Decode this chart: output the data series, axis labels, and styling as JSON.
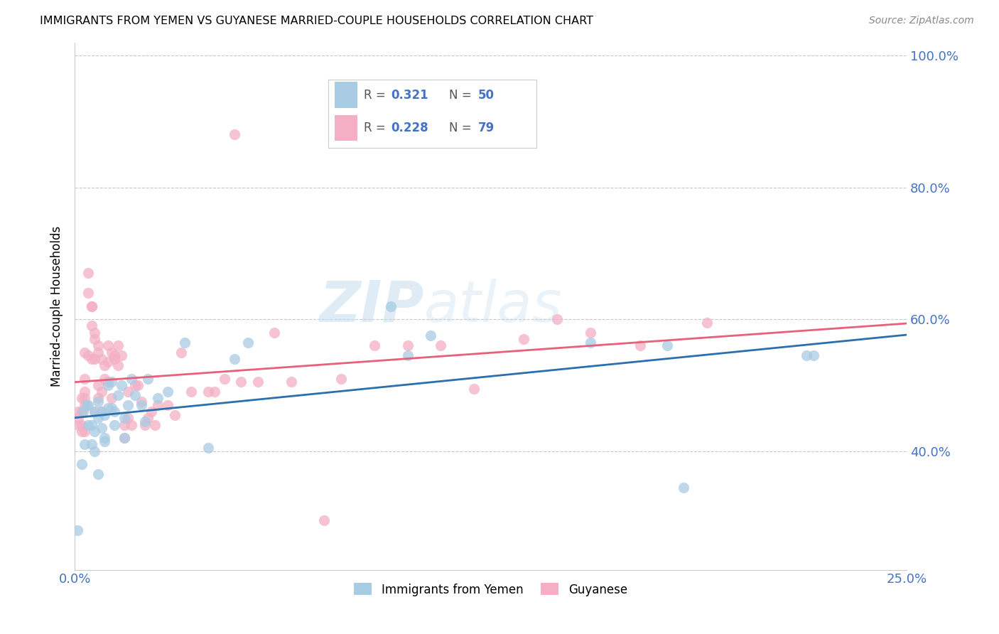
{
  "title": "IMMIGRANTS FROM YEMEN VS GUYANESE MARRIED-COUPLE HOUSEHOLDS CORRELATION CHART",
  "source": "Source: ZipAtlas.com",
  "ylabel": "Married-couple Households",
  "x_min": 0.0,
  "x_max": 0.25,
  "y_min": 0.22,
  "y_max": 1.02,
  "x_ticks": [
    0.0,
    0.05,
    0.1,
    0.15,
    0.2,
    0.25
  ],
  "x_tick_labels": [
    "0.0%",
    "",
    "",
    "",
    "",
    "25.0%"
  ],
  "y_ticks": [
    0.4,
    0.6,
    0.8,
    1.0
  ],
  "y_tick_labels": [
    "40.0%",
    "60.0%",
    "80.0%",
    "100.0%"
  ],
  "color_blue": "#a8cce4",
  "color_pink": "#f4afc4",
  "line_color_blue": "#2c6fad",
  "line_color_pink": "#e8607a",
  "watermark_zip": "ZIP",
  "watermark_atlas": "atlas",
  "background_color": "#ffffff",
  "grid_color": "#c8c8c8",
  "yemen_x": [
    0.0008,
    0.002,
    0.0025,
    0.003,
    0.0035,
    0.004,
    0.004,
    0.005,
    0.005,
    0.006,
    0.006,
    0.006,
    0.007,
    0.007,
    0.007,
    0.008,
    0.008,
    0.009,
    0.009,
    0.009,
    0.01,
    0.01,
    0.011,
    0.011,
    0.012,
    0.012,
    0.013,
    0.014,
    0.015,
    0.015,
    0.016,
    0.017,
    0.018,
    0.02,
    0.021,
    0.022,
    0.025,
    0.028,
    0.033,
    0.04,
    0.048,
    0.052,
    0.095,
    0.1,
    0.107,
    0.155,
    0.178,
    0.183,
    0.22,
    0.222
  ],
  "yemen_y": [
    0.28,
    0.38,
    0.46,
    0.41,
    0.47,
    0.44,
    0.47,
    0.44,
    0.41,
    0.46,
    0.43,
    0.4,
    0.475,
    0.45,
    0.365,
    0.435,
    0.46,
    0.455,
    0.415,
    0.42,
    0.5,
    0.465,
    0.505,
    0.465,
    0.46,
    0.44,
    0.485,
    0.5,
    0.45,
    0.42,
    0.47,
    0.51,
    0.485,
    0.47,
    0.445,
    0.51,
    0.48,
    0.49,
    0.565,
    0.405,
    0.54,
    0.565,
    0.62,
    0.545,
    0.575,
    0.565,
    0.56,
    0.345,
    0.545,
    0.545
  ],
  "guyanese_x": [
    0.001,
    0.001,
    0.001,
    0.002,
    0.002,
    0.002,
    0.002,
    0.003,
    0.003,
    0.003,
    0.003,
    0.003,
    0.003,
    0.004,
    0.004,
    0.004,
    0.005,
    0.005,
    0.005,
    0.005,
    0.006,
    0.006,
    0.006,
    0.006,
    0.007,
    0.007,
    0.007,
    0.007,
    0.008,
    0.008,
    0.008,
    0.009,
    0.009,
    0.01,
    0.01,
    0.01,
    0.011,
    0.011,
    0.012,
    0.012,
    0.013,
    0.013,
    0.014,
    0.015,
    0.015,
    0.016,
    0.016,
    0.017,
    0.018,
    0.019,
    0.02,
    0.021,
    0.022,
    0.023,
    0.024,
    0.025,
    0.028,
    0.03,
    0.032,
    0.035,
    0.04,
    0.042,
    0.045,
    0.048,
    0.05,
    0.055,
    0.06,
    0.065,
    0.075,
    0.08,
    0.09,
    0.1,
    0.11,
    0.12,
    0.135,
    0.145,
    0.155,
    0.17,
    0.19
  ],
  "guyanese_y": [
    0.45,
    0.44,
    0.46,
    0.43,
    0.48,
    0.46,
    0.44,
    0.48,
    0.49,
    0.51,
    0.55,
    0.47,
    0.43,
    0.67,
    0.64,
    0.545,
    0.62,
    0.62,
    0.59,
    0.54,
    0.58,
    0.57,
    0.54,
    0.46,
    0.56,
    0.55,
    0.5,
    0.48,
    0.54,
    0.49,
    0.46,
    0.53,
    0.51,
    0.56,
    0.535,
    0.505,
    0.55,
    0.48,
    0.545,
    0.54,
    0.56,
    0.53,
    0.545,
    0.44,
    0.42,
    0.49,
    0.45,
    0.44,
    0.5,
    0.5,
    0.475,
    0.44,
    0.45,
    0.46,
    0.44,
    0.47,
    0.47,
    0.455,
    0.55,
    0.49,
    0.49,
    0.49,
    0.51,
    0.88,
    0.505,
    0.505,
    0.58,
    0.505,
    0.295,
    0.51,
    0.56,
    0.56,
    0.56,
    0.495,
    0.57,
    0.6,
    0.58,
    0.56,
    0.595
  ]
}
